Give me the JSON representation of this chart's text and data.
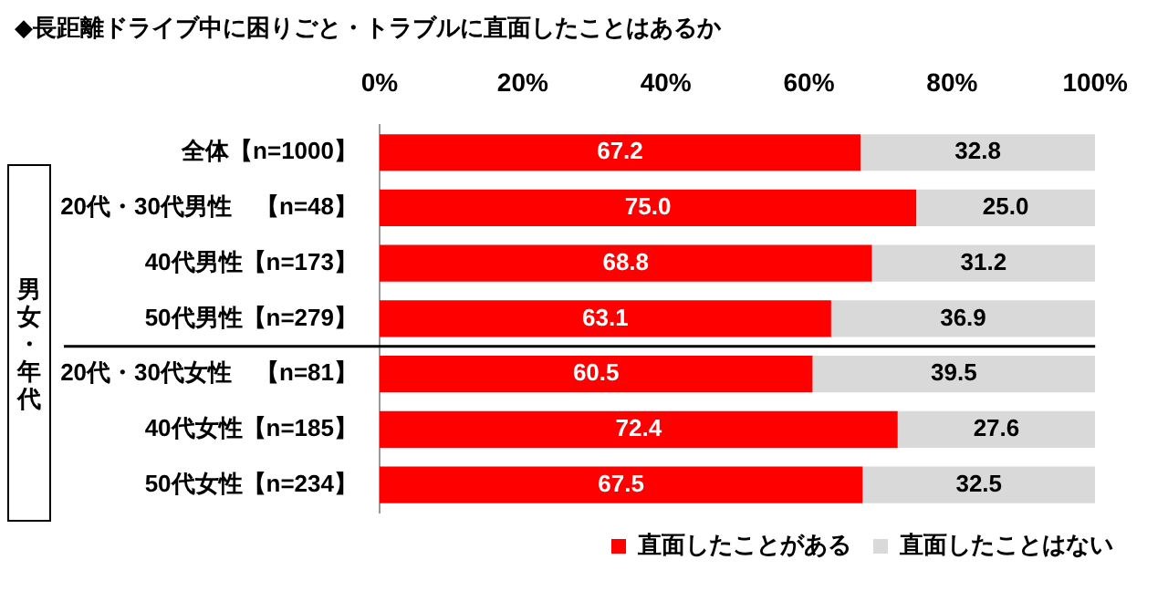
{
  "chart_data": {
    "type": "bar",
    "orientation": "horizontal",
    "stacked": true,
    "title": "◆長距離ドライブ中に困りごと・トラブルに直面したことはあるか",
    "categories": [
      "全体【n=1000】",
      "20代・30代男性　【n=48】",
      "40代男性【n=173】",
      "50代男性【n=279】",
      "20代・30代女性　【n=81】",
      "40代女性【n=185】",
      "50代女性【n=234】"
    ],
    "series": [
      {
        "name": "直面したことがある",
        "color": "#ff0000",
        "values": [
          67.2,
          75.0,
          68.8,
          63.1,
          60.5,
          72.4,
          67.5
        ],
        "value_labels": [
          "67.2",
          "75.0",
          "68.8",
          "63.1",
          "60.5",
          "72.4",
          "67.5"
        ]
      },
      {
        "name": "直面したことはない",
        "color": "#d9d9d9",
        "values": [
          32.8,
          25.0,
          31.2,
          36.9,
          39.5,
          27.6,
          32.5
        ],
        "value_labels": [
          "32.8",
          "25.0",
          "31.2",
          "36.9",
          "39.5",
          "27.6",
          "32.5"
        ]
      }
    ],
    "xlim": [
      0,
      100
    ],
    "xticks": [
      {
        "value": 0,
        "label": "0%"
      },
      {
        "value": 20,
        "label": "20%"
      },
      {
        "value": 40,
        "label": "40%"
      },
      {
        "value": 60,
        "label": "60%"
      },
      {
        "value": 80,
        "label": "80%"
      },
      {
        "value": 100,
        "label": "100%"
      }
    ],
    "grid": false,
    "legend": "bottom",
    "annotations": [
      "男女・年代"
    ]
  }
}
